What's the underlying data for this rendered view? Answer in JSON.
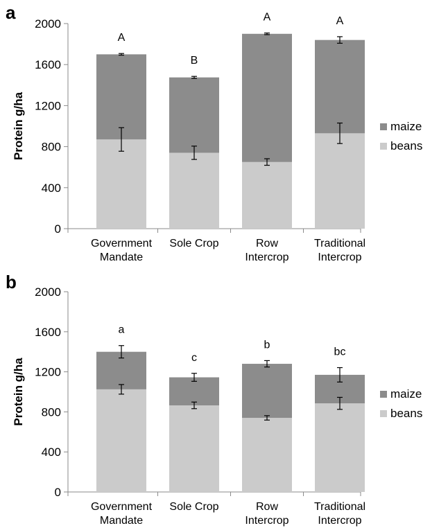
{
  "chart_data": [
    {
      "panel": "a",
      "type": "bar",
      "stacked": true,
      "ylabel": "Protein g/ha",
      "ylim": [
        0,
        2000
      ],
      "yticks": [
        0,
        400,
        800,
        1200,
        1600,
        2000
      ],
      "categories": [
        [
          "Government",
          "Mandate"
        ],
        [
          "Sole Crop"
        ],
        [
          "Row",
          "Intercrop"
        ],
        [
          "Traditional",
          "Intercrop"
        ]
      ],
      "series": [
        {
          "name": "beans",
          "color": "#cbcbcb",
          "values": [
            870,
            740,
            650,
            930
          ],
          "error": [
            115,
            65,
            32,
            100
          ]
        },
        {
          "name": "maize",
          "color": "#8c8c8c",
          "values": [
            830,
            735,
            1250,
            910
          ],
          "error": [
            8,
            10,
            8,
            32
          ]
        }
      ],
      "significance": [
        "A",
        "B",
        "A",
        "A"
      ],
      "legend": "right"
    },
    {
      "panel": "b",
      "type": "bar",
      "stacked": true,
      "ylabel": "Protein g/ha",
      "ylim": [
        0,
        2000
      ],
      "yticks": [
        0,
        400,
        800,
        1200,
        1600,
        2000
      ],
      "categories": [
        [
          "Government",
          "Mandate"
        ],
        [
          "Sole Crop"
        ],
        [
          "Row",
          "Intercrop"
        ],
        [
          "Traditional",
          "Intercrop"
        ]
      ],
      "series": [
        {
          "name": "beans",
          "color": "#cbcbcb",
          "values": [
            1025,
            865,
            740,
            885
          ],
          "error": [
            48,
            33,
            22,
            60
          ]
        },
        {
          "name": "maize",
          "color": "#8c8c8c",
          "values": [
            375,
            280,
            540,
            285
          ],
          "error": [
            62,
            40,
            32,
            72
          ]
        }
      ],
      "significance": [
        "a",
        "c",
        "b",
        "bc"
      ],
      "legend": "right"
    }
  ]
}
